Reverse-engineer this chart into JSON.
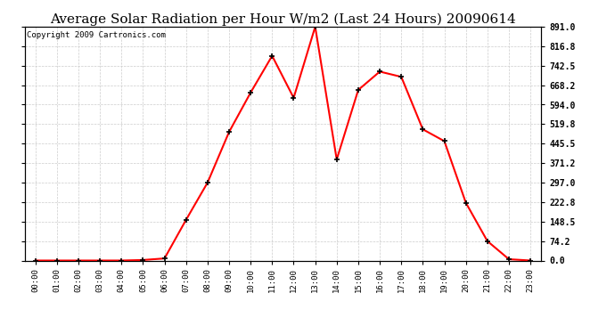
{
  "title": "Average Solar Radiation per Hour W/m2 (Last 24 Hours) 20090614",
  "copyright": "Copyright 2009 Cartronics.com",
  "hours": [
    0,
    1,
    2,
    3,
    4,
    5,
    6,
    7,
    8,
    9,
    10,
    11,
    12,
    13,
    14,
    15,
    16,
    17,
    18,
    19,
    20,
    21,
    22,
    23
  ],
  "values": [
    0,
    0,
    0,
    0,
    0,
    2,
    8,
    155,
    297,
    490,
    640,
    780,
    620,
    891,
    385,
    650,
    720,
    700,
    500,
    455,
    220,
    74,
    5,
    0
  ],
  "yticks": [
    0.0,
    74.2,
    148.5,
    222.8,
    297.0,
    371.2,
    445.5,
    519.8,
    594.0,
    668.2,
    742.5,
    816.8,
    891.0
  ],
  "line_color": "#ff0000",
  "marker_color": "#000000",
  "background_color": "#ffffff",
  "grid_color": "#cccccc",
  "title_fontsize": 11,
  "copyright_fontsize": 6.5,
  "ylim": [
    0,
    891.0
  ]
}
